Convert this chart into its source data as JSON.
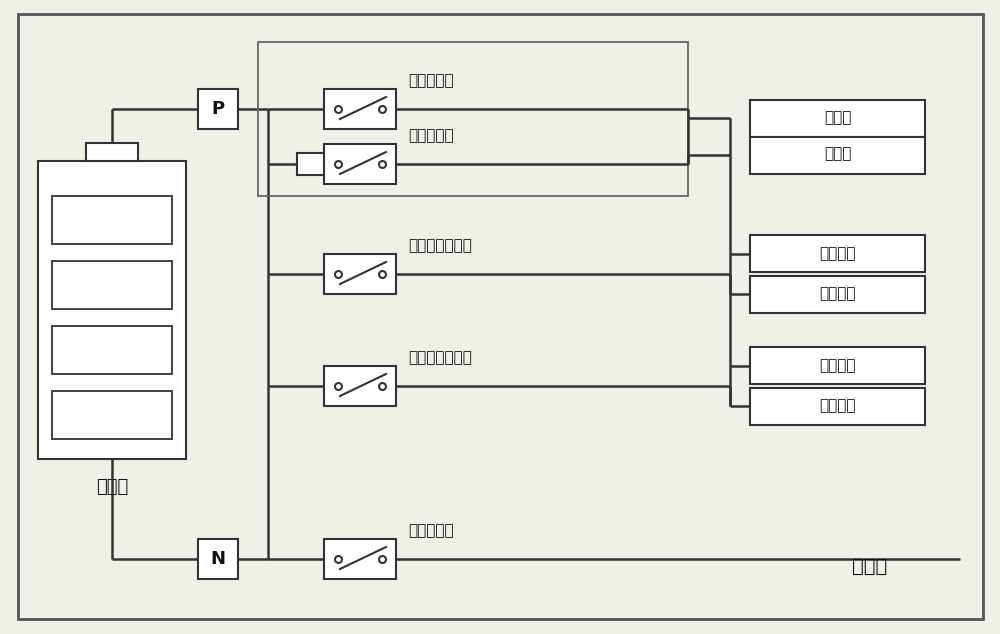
{
  "bg_color": "#f0efe8",
  "line_color": "#333333",
  "text_color": "#111111",
  "font_size": 11,
  "battery_label": "电池组",
  "title_bottom": "电池包",
  "label_main_pos": "主正继电器",
  "label_precharge": "预充继电器",
  "label_slow": "车载充电继电器",
  "label_fast": "快速充电继电器",
  "label_main_neg": "主负继电器",
  "label_out1a": "供电正",
  "label_out1b": "供电负",
  "label_out2a": "慢充电正",
  "label_out2b": "慢充电负",
  "label_out3a": "快充电正",
  "label_out3b": "快充电负"
}
